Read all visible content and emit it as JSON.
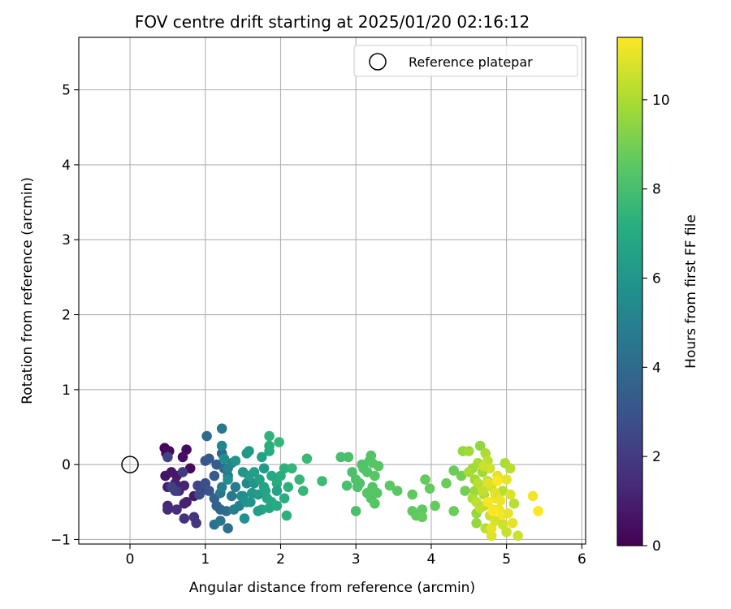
{
  "chart_data": {
    "type": "scatter",
    "title": "FOV centre drift starting at 2025/01/20 02:16:12",
    "xlabel": "Angular distance from reference (arcmin)",
    "ylabel": "Rotation from reference (arcmin)",
    "xlim": [
      -0.68,
      6.05
    ],
    "ylim": [
      -1.06,
      5.7
    ],
    "x_ticks": [
      "0",
      "1",
      "2",
      "3",
      "4",
      "5",
      "6"
    ],
    "y_ticks": [
      "−1",
      "0",
      "1",
      "2",
      "3",
      "4",
      "5"
    ],
    "grid": true,
    "legend": {
      "position": "top-right",
      "entries": [
        "Reference platepar"
      ]
    },
    "reference_point": {
      "x": 0,
      "y": 0
    },
    "colorbar": {
      "label": "Hours from first FF file",
      "colormap": "viridis",
      "range": [
        0,
        11.4
      ],
      "ticks": [
        "0",
        "2",
        "4",
        "6",
        "8",
        "10"
      ]
    },
    "points": [
      [
        0.46,
        0.22,
        0.1
      ],
      [
        0.48,
        0.15,
        0.2
      ],
      [
        0.52,
        0.18,
        0.3
      ],
      [
        0.75,
        0.2,
        0.4
      ],
      [
        0.7,
        0.1,
        0.5
      ],
      [
        0.47,
        -0.15,
        0.6
      ],
      [
        0.55,
        -0.1,
        0.7
      ],
      [
        0.62,
        -0.15,
        0.8
      ],
      [
        0.5,
        -0.3,
        0.9
      ],
      [
        0.6,
        -0.25,
        1.0
      ],
      [
        0.72,
        -0.28,
        1.1
      ],
      [
        0.65,
        -0.35,
        1.2
      ],
      [
        0.8,
        -0.05,
        0.3
      ],
      [
        0.85,
        -0.42,
        0.8
      ],
      [
        0.75,
        -0.5,
        1.0
      ],
      [
        0.72,
        -0.52,
        1.1
      ],
      [
        0.5,
        -0.55,
        1.3
      ],
      [
        0.5,
        -0.6,
        1.4
      ],
      [
        0.62,
        -0.6,
        1.5
      ],
      [
        0.72,
        -0.72,
        1.6
      ],
      [
        0.85,
        -0.7,
        1.7
      ],
      [
        0.88,
        -0.78,
        1.8
      ],
      [
        0.62,
        -0.35,
        1.9
      ],
      [
        0.7,
        -0.1,
        2.0
      ],
      [
        0.6,
        -0.35,
        2.1
      ],
      [
        0.55,
        -0.3,
        2.2
      ],
      [
        0.5,
        0.1,
        2.3
      ],
      [
        0.9,
        -0.28,
        2.4
      ],
      [
        0.95,
        -0.35,
        2.5
      ],
      [
        0.92,
        -0.4,
        2.6
      ],
      [
        1.0,
        -0.25,
        2.8
      ],
      [
        1.05,
        -0.35,
        3.0
      ],
      [
        1.0,
        0.05,
        3.1
      ],
      [
        1.05,
        0.08,
        3.2
      ],
      [
        1.12,
        -0.15,
        3.3
      ],
      [
        1.15,
        0.0,
        3.4
      ],
      [
        1.12,
        -0.45,
        3.5
      ],
      [
        1.15,
        -0.55,
        3.6
      ],
      [
        1.2,
        -0.6,
        3.7
      ],
      [
        1.22,
        0.15,
        3.8
      ],
      [
        1.25,
        -0.05,
        3.9
      ],
      [
        1.28,
        -0.62,
        4.0
      ],
      [
        1.3,
        -0.85,
        4.2
      ],
      [
        1.12,
        -0.8,
        4.3
      ],
      [
        1.2,
        -0.75,
        4.4
      ],
      [
        1.2,
        -0.38,
        4.5
      ],
      [
        1.3,
        -0.15,
        4.6
      ],
      [
        1.35,
        -0.42,
        4.7
      ],
      [
        1.4,
        -0.3,
        4.8
      ],
      [
        1.22,
        -0.3,
        4.9
      ],
      [
        1.3,
        -0.05,
        5.0
      ],
      [
        1.45,
        -0.55,
        5.1
      ],
      [
        1.35,
        0.02,
        5.2
      ],
      [
        1.48,
        -0.42,
        5.3
      ],
      [
        1.55,
        -0.25,
        5.4
      ],
      [
        1.25,
        0.08,
        5.5
      ],
      [
        1.38,
        -0.6,
        5.0
      ],
      [
        1.02,
        0.38,
        4.0
      ],
      [
        1.22,
        0.48,
        4.5
      ],
      [
        1.22,
        0.25,
        5.2
      ],
      [
        1.3,
        -0.2,
        5.6
      ],
      [
        1.5,
        -0.42,
        5.7
      ],
      [
        1.55,
        -0.5,
        5.8
      ],
      [
        1.6,
        -0.5,
        5.9
      ],
      [
        1.65,
        -0.25,
        6.0
      ],
      [
        1.62,
        -0.38,
        6.1
      ],
      [
        1.7,
        -0.4,
        6.2
      ],
      [
        1.58,
        -0.15,
        6.3
      ],
      [
        1.65,
        -0.1,
        6.4
      ],
      [
        1.72,
        -0.2,
        6.5
      ],
      [
        1.78,
        -0.3,
        6.6
      ],
      [
        1.8,
        -0.35,
        6.7
      ],
      [
        1.82,
        -0.45,
        6.8
      ],
      [
        1.75,
        -0.6,
        6.9
      ],
      [
        1.88,
        -0.5,
        7.0
      ],
      [
        1.55,
        0.15,
        6.0
      ],
      [
        1.58,
        0.18,
        6.2
      ],
      [
        1.52,
        -0.72,
        5.8
      ],
      [
        1.7,
        -0.62,
        6.4
      ],
      [
        1.85,
        -0.58,
        6.8
      ],
      [
        1.88,
        -0.15,
        6.9
      ],
      [
        1.85,
        0.18,
        7.0
      ],
      [
        1.95,
        -0.55,
        7.1
      ],
      [
        1.95,
        -0.25,
        7.1
      ],
      [
        2.0,
        -0.15,
        7.2
      ],
      [
        2.05,
        -0.45,
        7.2
      ],
      [
        2.1,
        -0.3,
        7.3
      ],
      [
        2.08,
        -0.68,
        7.3
      ],
      [
        2.05,
        -0.05,
        7.3
      ],
      [
        1.85,
        0.25,
        7.2
      ],
      [
        1.85,
        0.38,
        7.4
      ],
      [
        1.98,
        0.3,
        7.5
      ],
      [
        1.4,
        0.05,
        5.8
      ],
      [
        1.5,
        -0.1,
        6.0
      ],
      [
        1.78,
        -0.05,
        6.2
      ],
      [
        1.75,
        0.1,
        6.5
      ],
      [
        1.95,
        -0.35,
        6.6
      ],
      [
        2.15,
        -0.05,
        7.5
      ],
      [
        2.25,
        -0.2,
        7.6
      ],
      [
        2.35,
        0.08,
        7.7
      ],
      [
        2.3,
        -0.35,
        7.6
      ],
      [
        2.55,
        -0.22,
        7.8
      ],
      [
        2.8,
        0.1,
        8.0
      ],
      [
        2.88,
        -0.28,
        8.0
      ],
      [
        2.9,
        0.1,
        8.1
      ],
      [
        2.95,
        -0.1,
        8.1
      ],
      [
        3.0,
        -0.2,
        8.2
      ],
      [
        3.02,
        -0.3,
        8.2
      ],
      [
        3.05,
        -0.25,
        8.2
      ],
      [
        3.08,
        0.0,
        8.2
      ],
      [
        3.1,
        -0.05,
        8.3
      ],
      [
        3.15,
        -0.1,
        8.3
      ],
      [
        3.18,
        0.05,
        8.3
      ],
      [
        3.2,
        -0.45,
        8.3
      ],
      [
        3.2,
        0.12,
        8.3
      ],
      [
        3.22,
        -0.3,
        8.3
      ],
      [
        3.25,
        -0.15,
        8.4
      ],
      [
        3.0,
        -0.62,
        8.1
      ],
      [
        3.15,
        -0.38,
        8.4
      ],
      [
        3.25,
        -0.52,
        8.4
      ],
      [
        3.28,
        -0.38,
        8.4
      ],
      [
        3.3,
        -0.02,
        8.4
      ],
      [
        3.22,
        0.02,
        8.4
      ],
      [
        3.45,
        -0.28,
        8.5
      ],
      [
        3.55,
        -0.35,
        8.5
      ],
      [
        3.75,
        -0.4,
        8.6
      ],
      [
        3.75,
        -0.62,
        8.6
      ],
      [
        3.8,
        -0.68,
        8.6
      ],
      [
        3.85,
        -0.65,
        8.6
      ],
      [
        3.88,
        -0.6,
        8.6
      ],
      [
        3.88,
        -0.7,
        8.7
      ],
      [
        3.92,
        -0.2,
        8.7
      ],
      [
        3.98,
        -0.32,
        8.7
      ],
      [
        4.05,
        -0.55,
        8.7
      ],
      [
        4.2,
        -0.25,
        8.8
      ],
      [
        4.3,
        -0.08,
        8.8
      ],
      [
        4.3,
        -0.62,
        8.8
      ],
      [
        4.4,
        -0.15,
        9.0
      ],
      [
        4.45,
        -0.35,
        9.0
      ],
      [
        4.42,
        0.18,
        9.6
      ],
      [
        4.5,
        0.18,
        9.8
      ],
      [
        4.55,
        -0.05,
        9.8
      ],
      [
        4.58,
        -0.35,
        9.7
      ],
      [
        4.58,
        -0.2,
        9.8
      ],
      [
        4.6,
        -0.65,
        9.6
      ],
      [
        4.6,
        -0.78,
        9.6
      ],
      [
        4.62,
        0.02,
        10.0
      ],
      [
        4.65,
        0.25,
        9.5
      ],
      [
        4.68,
        -0.1,
        9.8
      ],
      [
        4.7,
        -0.4,
        10.0
      ],
      [
        4.7,
        -0.55,
        10.1
      ],
      [
        4.72,
        0.15,
        10.0
      ],
      [
        4.72,
        -0.85,
        10.2
      ],
      [
        4.75,
        0.05,
        10.3
      ],
      [
        4.75,
        -0.22,
        10.2
      ],
      [
        4.78,
        -0.68,
        10.5
      ],
      [
        4.8,
        -0.95,
        10.8
      ],
      [
        4.8,
        -0.3,
        10.6
      ],
      [
        4.82,
        -0.6,
        11.0
      ],
      [
        4.85,
        -0.45,
        11.2
      ],
      [
        4.88,
        -0.15,
        11.0
      ],
      [
        4.9,
        -0.6,
        11.2
      ],
      [
        4.92,
        -0.72,
        11.3
      ],
      [
        4.95,
        -0.35,
        10.2
      ],
      [
        4.98,
        0.02,
        10.0
      ],
      [
        5.0,
        -0.9,
        10.5
      ],
      [
        5.0,
        -0.2,
        11.0
      ],
      [
        5.02,
        -0.65,
        11.0
      ],
      [
        5.05,
        -0.05,
        10.2
      ],
      [
        5.1,
        -0.52,
        10.2
      ],
      [
        5.15,
        -0.95,
        10.5
      ],
      [
        5.35,
        -0.42,
        11.2
      ],
      [
        5.42,
        -0.62,
        11.4
      ],
      [
        4.75,
        -0.25,
        10.9
      ],
      [
        4.85,
        -0.38,
        10.9
      ],
      [
        4.92,
        -0.48,
        11.1
      ],
      [
        4.8,
        -0.85,
        11.0
      ],
      [
        4.65,
        -0.58,
        10.4
      ],
      [
        4.7,
        -0.02,
        10.5
      ],
      [
        4.5,
        -0.1,
        9.9
      ],
      [
        4.55,
        -0.45,
        10.0
      ],
      [
        4.62,
        -0.25,
        10.2
      ],
      [
        4.78,
        -0.05,
        10.6
      ],
      [
        4.85,
        -0.75,
        10.7
      ],
      [
        5.05,
        -0.4,
        10.8
      ],
      [
        5.08,
        -0.78,
        11.0
      ],
      [
        4.95,
        -0.8,
        10.6
      ],
      [
        4.75,
        -0.5,
        11.3
      ],
      [
        4.82,
        -0.62,
        11.4
      ],
      [
        4.88,
        -0.22,
        11.4
      ],
      [
        4.68,
        -0.35,
        10.4
      ],
      [
        4.6,
        -0.5,
        10.3
      ]
    ]
  }
}
